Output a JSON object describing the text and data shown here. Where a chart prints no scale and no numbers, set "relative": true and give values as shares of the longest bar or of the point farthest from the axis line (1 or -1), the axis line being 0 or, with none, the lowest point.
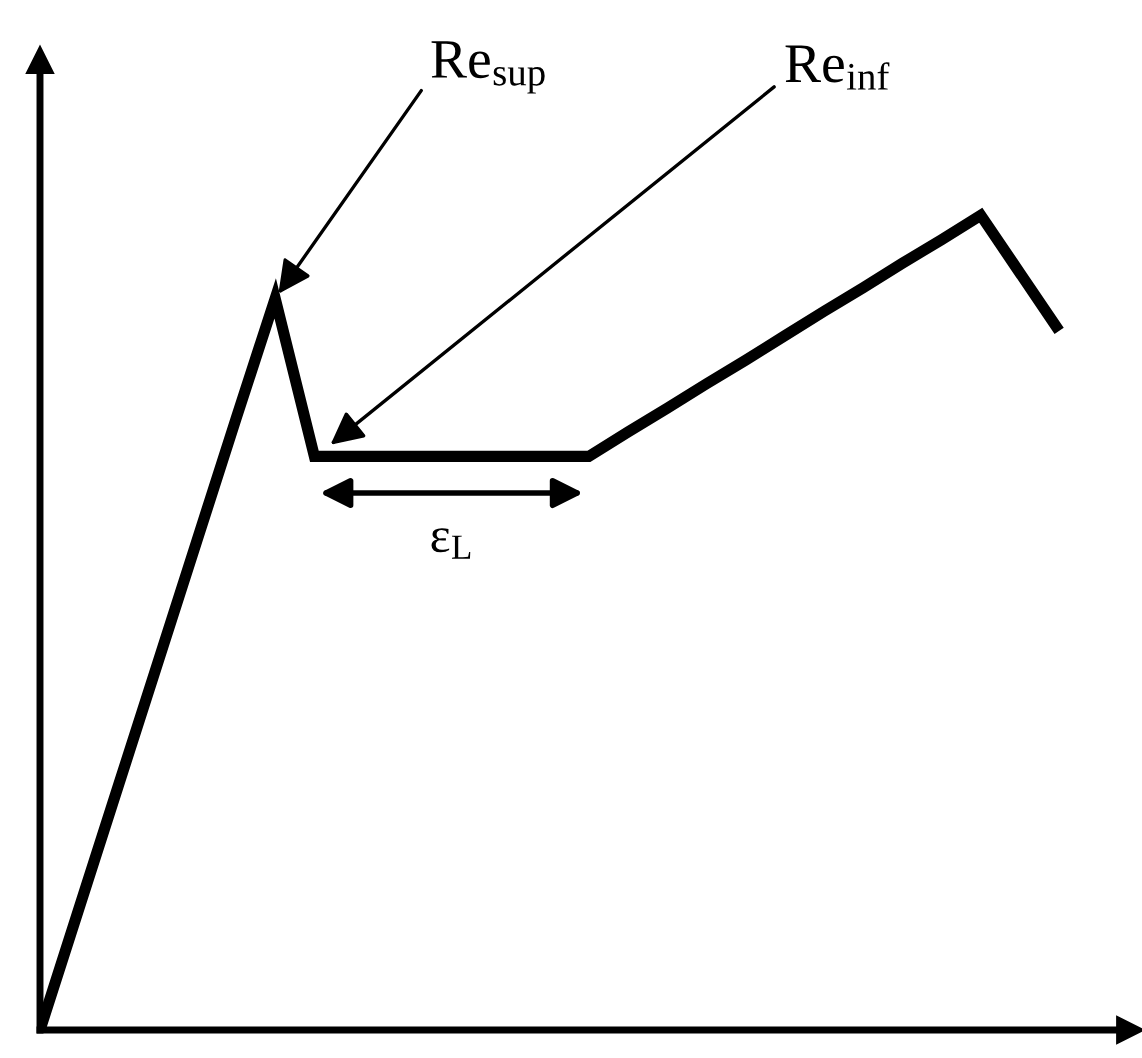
{
  "chart_data": {
    "type": "line",
    "relative": true,
    "color": "#000000",
    "categories": [
      null,
      null,
      null,
      null,
      null,
      null,
      null,
      null,
      null,
      null,
      null,
      null,
      null,
      null,
      null,
      null,
      null,
      null,
      null,
      null,
      null,
      null,
      null,
      null,
      null,
      null,
      null
    ],
    "values": [
      0,
      0.15,
      0.3,
      0.45,
      0.6,
      0.75,
      0.898,
      0.704,
      0.704,
      0.704,
      0.704,
      0.704,
      0.704,
      0.704,
      0.704,
      0.734,
      0.763,
      0.793,
      0.822,
      0.852,
      0.882,
      0.911,
      0.941,
      0.97,
      1.0,
      0.929,
      0.858
    ],
    "annotations": [
      "Re$_{sup}$",
      "Re$_{inf}$",
      "ε$_{L}$"
    ],
    "marker": "none",
    "line_style": "solid"
  }
}
